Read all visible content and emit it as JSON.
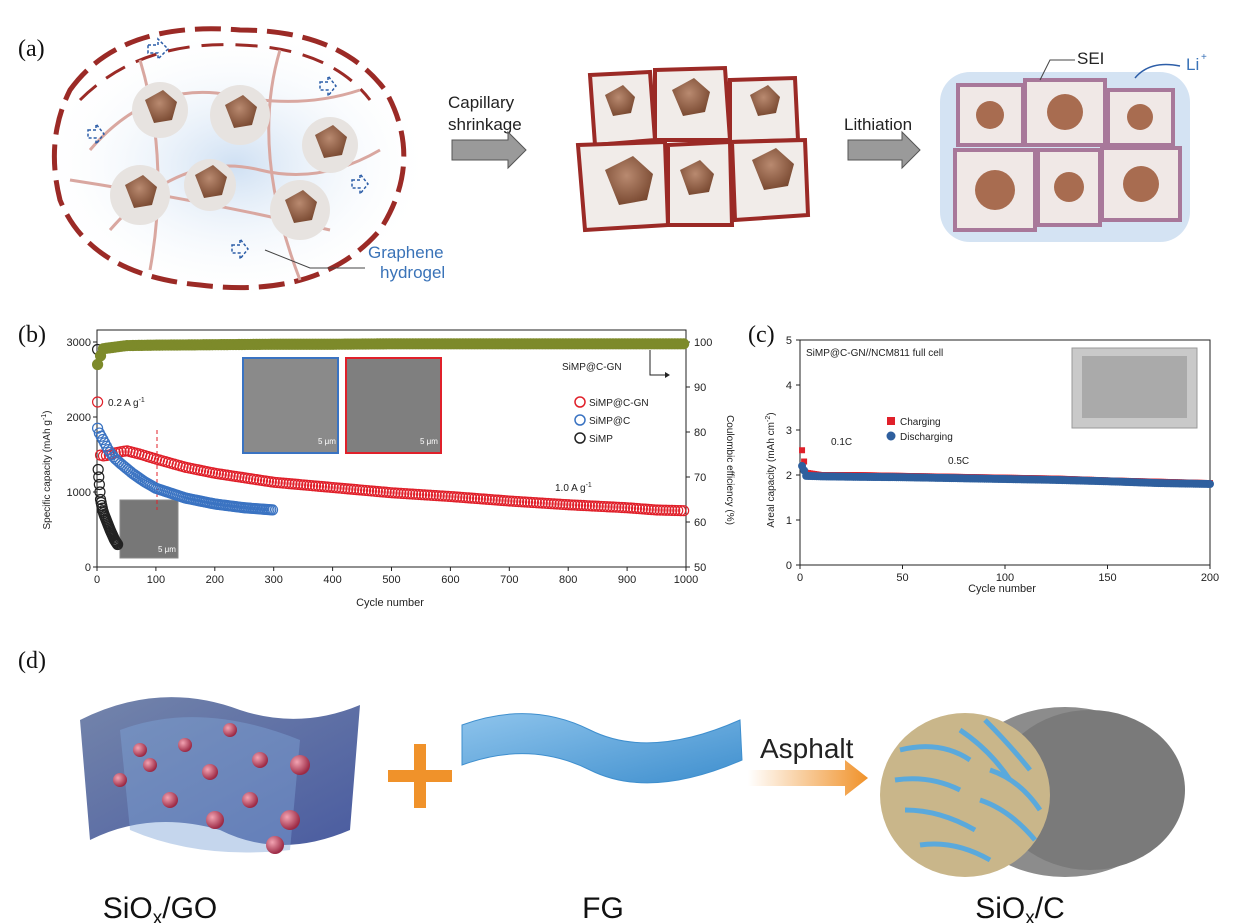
{
  "panels": {
    "a": {
      "label": "(a)",
      "arrow1_line1": "Capillary",
      "arrow1_line2": "shrinkage",
      "arrow2": "Lithiation",
      "graphene_line1": "Graphene",
      "graphene_line2": "hydrogel",
      "sei": "SEI",
      "li": "Li",
      "li_sup": "+"
    },
    "b": {
      "label": "(b)",
      "xlabel": "Cycle number",
      "ylabel_left": "Specific capacity (mAh g",
      "ylabel_left_sup": "-1",
      "ylabel_left_end": ")",
      "ylabel_right": "Coulombic efficiency (%)",
      "rate_initial": "0.2 A g",
      "rate_initial_sup": "-1",
      "rate_main": "1.0 A g",
      "rate_main_sup": "-1",
      "ce_label": "SiMP@C-GN",
      "legend": [
        "SiMP@C-GN",
        "SiMP@C",
        "SiMP"
      ],
      "scalebar": "5 μm",
      "colors": {
        "simp_cgn": "#e0202a",
        "simp_c": "#3a73c2",
        "simp": "#222222",
        "ce": "#7d8a2a"
      }
    },
    "c": {
      "label": "(c)",
      "title": "SiMP@C-GN//NCM811 full cell",
      "xlabel": "Cycle number",
      "ylabel": "Areal capacity (mAh cm",
      "ylabel_sup": "-2",
      "ylabel_end": ")",
      "legend": [
        "Charging",
        "Discharging"
      ],
      "rate1": "0.1C",
      "rate2": "0.5C",
      "colors": {
        "charge": "#e0202a",
        "discharge": "#2e5f9e"
      }
    },
    "d": {
      "label": "(d)",
      "left": "SiO",
      "left_sub": "x",
      "left_end": "/GO",
      "middle": "FG",
      "arrow": "Asphalt",
      "right": "SiO",
      "right_sub": "x",
      "right_end": "/C"
    }
  },
  "chart_data": [
    {
      "type": "scatter",
      "title": "",
      "xlabel": "Cycle number",
      "ylabel": "Specific capacity (mAh g-1)",
      "y2label": "Coulombic efficiency (%)",
      "xlim": [
        0,
        1000
      ],
      "ylim": [
        0,
        3000
      ],
      "y2lim": [
        50,
        100
      ],
      "xticks": [
        0,
        100,
        200,
        300,
        400,
        500,
        600,
        700,
        800,
        900,
        1000
      ],
      "yticks": [
        0,
        1000,
        2000,
        3000
      ],
      "y2ticks": [
        50,
        60,
        70,
        80,
        90,
        100
      ],
      "series": [
        {
          "name": "SiMP@C-GN",
          "x": [
            1,
            3,
            10,
            20,
            30,
            50,
            75,
            100,
            150,
            200,
            300,
            400,
            500,
            600,
            700,
            800,
            900,
            950,
            1000
          ],
          "y": [
            2200,
            1500,
            1480,
            1490,
            1520,
            1550,
            1500,
            1440,
            1330,
            1250,
            1130,
            1060,
            990,
            940,
            880,
            830,
            790,
            760,
            750
          ]
        },
        {
          "name": "SiMP@C",
          "x": [
            1,
            3,
            10,
            20,
            30,
            40,
            60,
            80,
            100,
            150,
            200,
            250,
            300
          ],
          "y": [
            1850,
            1800,
            1700,
            1550,
            1450,
            1380,
            1250,
            1140,
            1050,
            920,
            840,
            790,
            760
          ]
        },
        {
          "name": "SiMP",
          "x": [
            1,
            2,
            4,
            6,
            8,
            10,
            12,
            15,
            18,
            22,
            26,
            30,
            35
          ],
          "y": [
            2900,
            1300,
            1100,
            900,
            820,
            750,
            700,
            640,
            580,
            500,
            430,
            360,
            300
          ]
        },
        {
          "name": "SiMP@C-GN CE",
          "axis": "y2",
          "x": [
            1,
            10,
            50,
            100,
            200,
            300,
            400,
            500,
            600,
            700,
            800,
            900,
            1000
          ],
          "y": [
            95,
            98.5,
            99.2,
            99.3,
            99.4,
            99.5,
            99.5,
            99.6,
            99.6,
            99.6,
            99.6,
            99.6,
            99.6
          ]
        }
      ]
    },
    {
      "type": "scatter",
      "title": "SiMP@C-GN//NCM811 full cell",
      "xlabel": "Cycle number",
      "ylabel": "Areal capacity (mAh cm-2)",
      "xlim": [
        0,
        200
      ],
      "ylim": [
        0,
        5
      ],
      "xticks": [
        0,
        50,
        100,
        150,
        200
      ],
      "yticks": [
        0,
        1,
        2,
        3,
        4,
        5
      ],
      "series": [
        {
          "name": "Charging",
          "x": [
            1,
            2,
            3,
            10,
            25,
            50,
            75,
            100,
            125,
            150,
            175,
            200
          ],
          "y": [
            2.55,
            2.3,
            2.05,
            2.0,
            2.0,
            1.98,
            1.96,
            1.94,
            1.92,
            1.88,
            1.85,
            1.82
          ]
        },
        {
          "name": "Discharging",
          "x": [
            1,
            2,
            3,
            10,
            25,
            50,
            75,
            100,
            125,
            150,
            175,
            200
          ],
          "y": [
            2.2,
            2.1,
            1.98,
            1.97,
            1.96,
            1.95,
            1.93,
            1.91,
            1.89,
            1.86,
            1.82,
            1.8
          ]
        }
      ]
    }
  ]
}
